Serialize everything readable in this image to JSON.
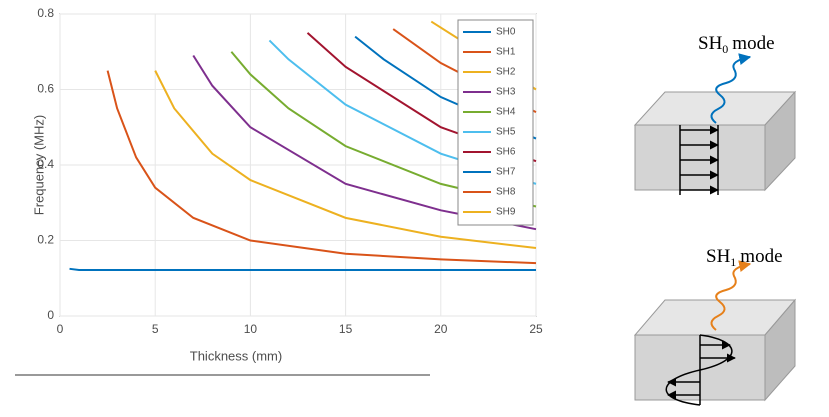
{
  "chart_data": {
    "type": "line",
    "xlabel": "Thickness (mm)",
    "ylabel": "Frequency (MHz)",
    "xlim": [
      0,
      25
    ],
    "ylim": [
      0,
      0.8
    ],
    "xticks": [
      0,
      5,
      10,
      15,
      20,
      25
    ],
    "yticks": [
      0,
      0.2,
      0.4,
      0.6,
      0.8
    ],
    "grid": true,
    "legend": "upper right",
    "series": [
      {
        "name": "SH0",
        "color": "#0072BD",
        "x": [
          0.5,
          1,
          5,
          10,
          15,
          20,
          25
        ],
        "values": [
          0.125,
          0.122,
          0.122,
          0.122,
          0.122,
          0.122,
          0.122
        ]
      },
      {
        "name": "SH1",
        "color": "#D95319",
        "x": [
          2.5,
          3,
          4,
          5,
          7,
          10,
          15,
          20,
          25
        ],
        "values": [
          0.65,
          0.55,
          0.42,
          0.34,
          0.26,
          0.2,
          0.165,
          0.15,
          0.14
        ]
      },
      {
        "name": "SH2",
        "color": "#EDB120",
        "x": [
          5,
          6,
          8,
          10,
          15,
          20,
          25
        ],
        "values": [
          0.65,
          0.55,
          0.43,
          0.36,
          0.26,
          0.21,
          0.18
        ]
      },
      {
        "name": "SH3",
        "color": "#7E2F8E",
        "x": [
          7,
          8,
          10,
          15,
          20,
          25
        ],
        "values": [
          0.69,
          0.61,
          0.5,
          0.35,
          0.28,
          0.23
        ]
      },
      {
        "name": "SH4",
        "color": "#77AC30",
        "x": [
          9,
          10,
          12,
          15,
          20,
          25
        ],
        "values": [
          0.7,
          0.64,
          0.55,
          0.45,
          0.35,
          0.29
        ]
      },
      {
        "name": "SH5",
        "color": "#4DBEEE",
        "x": [
          11,
          12,
          15,
          20,
          25
        ],
        "values": [
          0.73,
          0.68,
          0.56,
          0.43,
          0.35
        ]
      },
      {
        "name": "SH6",
        "color": "#A2142F",
        "x": [
          13,
          15,
          20,
          25
        ],
        "values": [
          0.75,
          0.66,
          0.5,
          0.41
        ]
      },
      {
        "name": "SH7",
        "color": "#0072BD",
        "x": [
          15.5,
          17,
          20,
          25
        ],
        "values": [
          0.74,
          0.68,
          0.58,
          0.47
        ]
      },
      {
        "name": "SH8",
        "color": "#D95319",
        "x": [
          17.5,
          20,
          25
        ],
        "values": [
          0.76,
          0.67,
          0.54
        ]
      },
      {
        "name": "SH9",
        "color": "#EDB120",
        "x": [
          19.5,
          22,
          25
        ],
        "values": [
          0.78,
          0.7,
          0.6
        ]
      }
    ]
  },
  "diagrams": [
    {
      "label": "SH",
      "subscript": "0",
      "suffix": "mode"
    },
    {
      "label": "SH",
      "subscript": "1",
      "suffix": "mode"
    }
  ]
}
